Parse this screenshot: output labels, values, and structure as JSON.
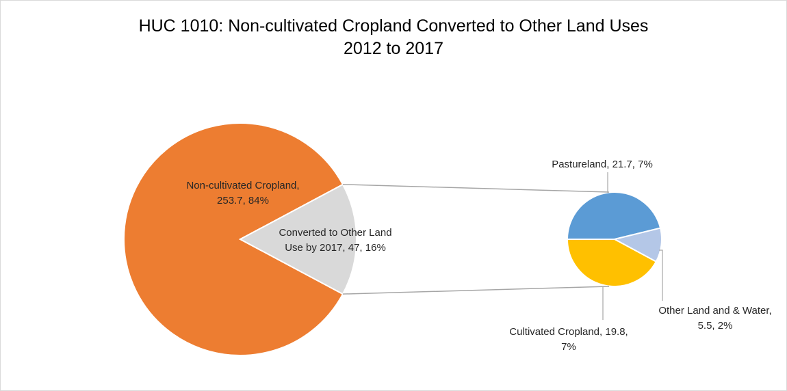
{
  "title_line1": "HUC 1010: Non-cultivated Cropland Converted to Other Land Uses",
  "title_line2": "2012 to 2017",
  "chart_data": {
    "type": "pie",
    "subtype": "pie-of-pie",
    "title": "HUC 1010: Non-cultivated Cropland Converted to Other Land Uses 2012 to 2017",
    "primary": {
      "slices": [
        {
          "name": "Non-cultivated Cropland",
          "value": 253.7,
          "percent": 84,
          "color": "#ED7D31",
          "label_lines": [
            "Non-cultivated Cropland,",
            "253.7, 84%"
          ]
        },
        {
          "name": "Converted to Other Land Use by 2017",
          "value": 47,
          "percent": 16,
          "color": "#D9D9D9",
          "label_lines": [
            "Converted to Other Land",
            "Use by 2017, 47, 16%"
          ]
        }
      ]
    },
    "secondary": {
      "slices": [
        {
          "name": "Pastureland",
          "value": 21.7,
          "percent": 7,
          "color": "#5B9BD5",
          "label_lines": [
            "Pastureland, 21.7, 7%"
          ]
        },
        {
          "name": "Other Land and & Water",
          "value": 5.5,
          "percent": 2,
          "color": "#B4C7E7",
          "label_lines": [
            "Other Land and & Water,",
            "5.5, 2%"
          ]
        },
        {
          "name": "Cultivated Cropland",
          "value": 19.8,
          "percent": 7,
          "color": "#FFC000",
          "label_lines": [
            "Cultivated Cropland, 19.8,",
            "7%"
          ]
        }
      ]
    },
    "legend": "none"
  }
}
